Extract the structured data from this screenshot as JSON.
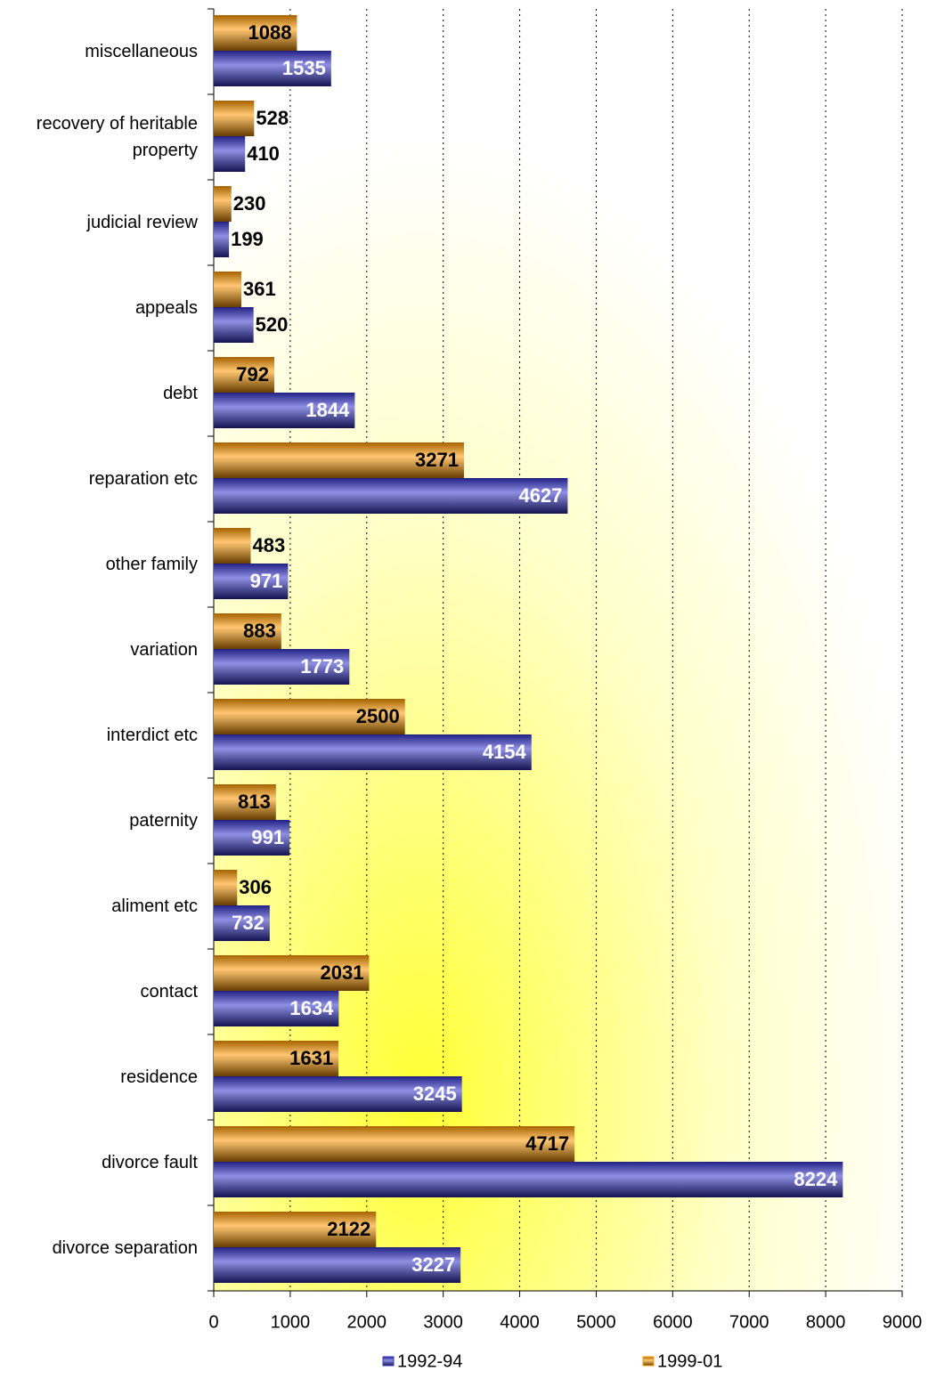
{
  "chart_data": {
    "type": "bar",
    "orientation": "horizontal",
    "categories": [
      "miscellaneous",
      "recovery of heritable property",
      "judicial review",
      "appeals",
      "debt",
      "reparation etc",
      "other family",
      "variation",
      "interdict etc",
      "paternity",
      "aliment etc",
      "contact",
      "residence",
      "divorce fault",
      "divorce separation"
    ],
    "series": [
      {
        "name": "1999-01",
        "color": "#FF9900",
        "values": [
          1088,
          528,
          230,
          361,
          792,
          3271,
          483,
          883,
          2500,
          813,
          306,
          2031,
          1631,
          4717,
          2122
        ]
      },
      {
        "name": "1992-94",
        "color": "#3333CC",
        "values": [
          1535,
          410,
          199,
          520,
          1844,
          4627,
          971,
          1773,
          4154,
          991,
          732,
          1634,
          3245,
          8224,
          3227
        ]
      }
    ],
    "xlim": [
      0,
      9000
    ],
    "xticks": [
      0,
      1000,
      2000,
      3000,
      4000,
      5000,
      6000,
      7000,
      8000,
      9000
    ],
    "grid": true,
    "legend": "bottom"
  }
}
